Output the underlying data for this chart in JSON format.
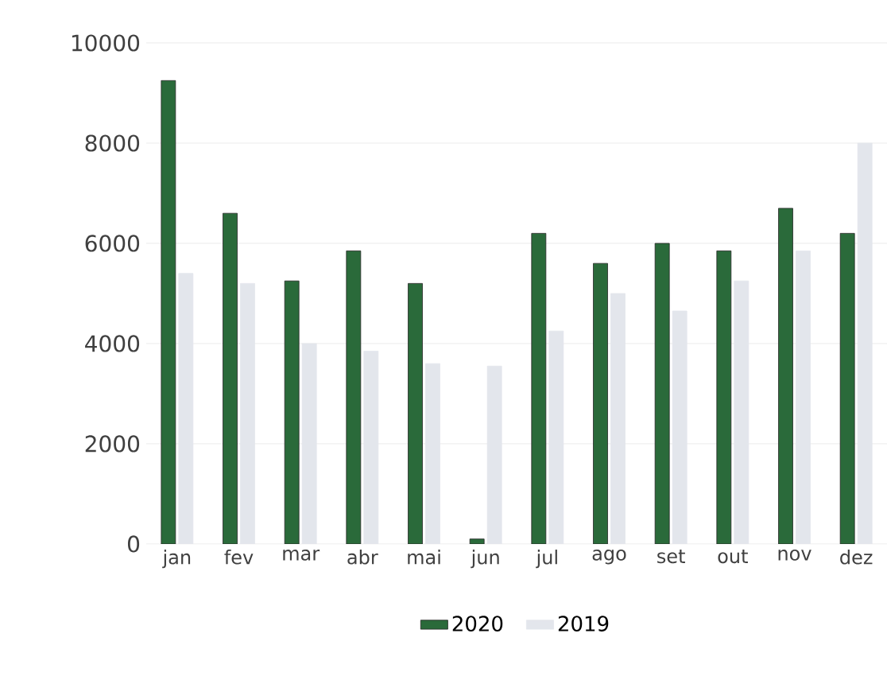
{
  "chart_data": {
    "type": "bar",
    "categories": [
      "jan",
      "fev",
      "mar",
      "abr",
      "mai",
      "jun",
      "jul",
      "ago",
      "set",
      "out",
      "nov",
      "dez"
    ],
    "series": [
      {
        "name": "2020",
        "color": "#2a6a3a",
        "values": [
          9250,
          6600,
          5250,
          5850,
          5200,
          100,
          6200,
          5600,
          6000,
          5850,
          6700,
          6200
        ]
      },
      {
        "name": "2019",
        "color": "#e3e6ec",
        "values": [
          5400,
          5200,
          4000,
          3850,
          3600,
          3550,
          4250,
          5000,
          4650,
          5250,
          5850,
          8000
        ]
      }
    ],
    "ylim": [
      0,
      10000
    ],
    "yticks": [
      0,
      2000,
      4000,
      6000,
      8000,
      10000
    ],
    "grid": "y",
    "legend": "bottom"
  }
}
